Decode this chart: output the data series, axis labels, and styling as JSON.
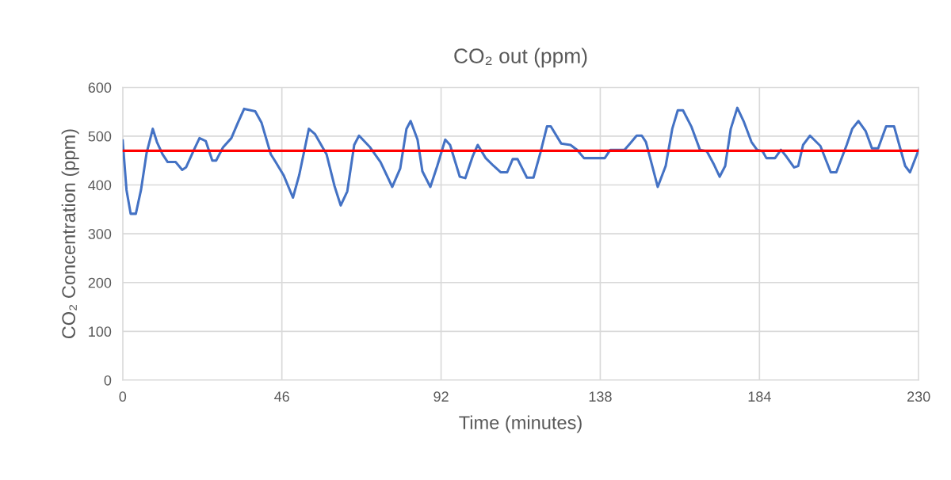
{
  "chart_data": {
    "type": "line",
    "title": "CO₂ out (ppm)",
    "xlabel": "Time (minutes)",
    "ylabel": "CO₂ Concentration (ppm)",
    "xlim": [
      0,
      230
    ],
    "xticks": [
      0,
      46,
      92,
      138,
      184,
      230
    ],
    "ylim": [
      0,
      600
    ],
    "yticks": [
      0,
      100,
      200,
      300,
      400,
      500,
      600
    ],
    "grid": true,
    "series": [
      {
        "color": "#4472c4",
        "x": [
          0,
          1.1,
          2.3,
          3.8,
          5.3,
          6.9,
          8.7,
          9.9,
          11.5,
          13,
          15.3,
          17.2,
          18.3,
          20.6,
          22.2,
          24,
          25.9,
          27,
          29,
          31.4,
          33.2,
          35.1,
          38.3,
          40.1,
          42.8,
          44.2,
          46.5,
          49.2,
          51,
          53.8,
          55.6,
          58.9,
          61.2,
          63,
          64.9,
          66.9,
          68.3,
          71.5,
          74.5,
          77.9,
          80.2,
          82,
          83.2,
          85.2,
          86.6,
          88.9,
          90.9,
          93.2,
          94.6,
          97.4,
          99,
          101.2,
          102.6,
          104.9,
          107.2,
          109.2,
          111.1,
          112.7,
          114.1,
          116.8,
          118.7,
          120.7,
          122.6,
          123.7,
          126.7,
          129.4,
          131.3,
          133.3,
          139.3,
          140.9,
          145,
          146.6,
          148.5,
          150,
          151.2,
          154.6,
          156.9,
          158.8,
          160.4,
          161.9,
          164.3,
          166.8,
          168.8,
          170.7,
          172.5,
          174.1,
          175.7,
          177.6,
          179.4,
          181.7,
          183.3,
          184.9,
          186,
          188.5,
          190.2,
          191.8,
          194,
          195.2,
          196.6,
          198.6,
          201.6,
          204.6,
          206.2,
          209.2,
          210.8,
          212.6,
          214.7,
          216.5,
          218.3,
          220.6,
          222.9,
          226.1,
          227.5,
          230
        ],
        "values": [
          491,
          390,
          341,
          341,
          390,
          465,
          515,
          488,
          463,
          447,
          447,
          431,
          436,
          472,
          496,
          490,
          450,
          450,
          477,
          496,
          526,
          556,
          551,
          528,
          463,
          447,
          420,
          374,
          420,
          515,
          504,
          463,
          398,
          358,
          387,
          482,
          501,
          477,
          447,
          396,
          434,
          515,
          531,
          493,
          428,
          396,
          439,
          493,
          482,
          417,
          414,
          460,
          482,
          455,
          439,
          426,
          426,
          453,
          453,
          415,
          415,
          466,
          520,
          520,
          485,
          482,
          472,
          455,
          455,
          472,
          472,
          485,
          501,
          501,
          488,
          396,
          439,
          515,
          553,
          553,
          520,
          472,
          469,
          444,
          417,
          439,
          515,
          558,
          531,
          488,
          472,
          469,
          455,
          455,
          472,
          458,
          436,
          439,
          482,
          501,
          480,
          426,
          426,
          482,
          515,
          531,
          510,
          475,
          475,
          520,
          520,
          439,
          426,
          472
        ]
      }
    ],
    "ref_lines": [
      {
        "axis": "y",
        "value": 470,
        "color": "#ff0000"
      }
    ]
  }
}
